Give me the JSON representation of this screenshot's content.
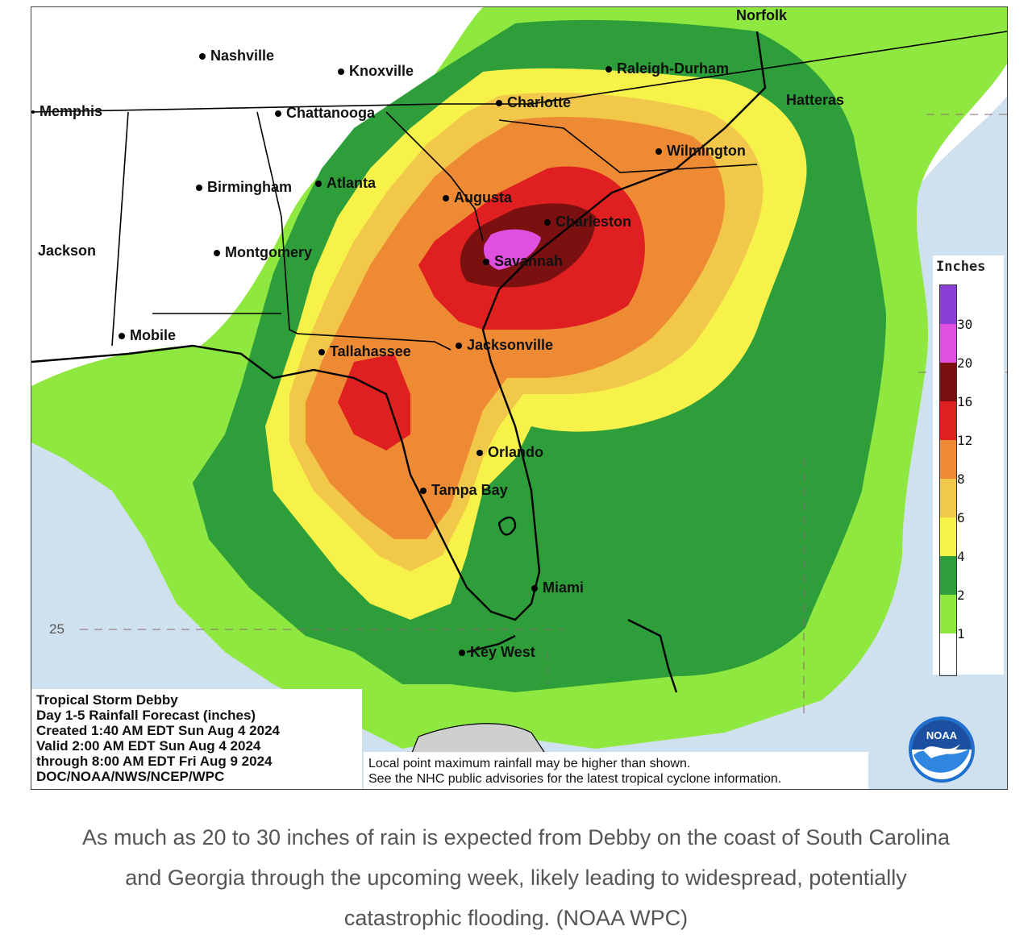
{
  "map": {
    "cities": [
      {
        "id": "norfolk",
        "label": "Norfolk"
      },
      {
        "id": "nashville",
        "label": "Nashville"
      },
      {
        "id": "knoxville",
        "label": "Knoxville"
      },
      {
        "id": "raleigh",
        "label": "Raleigh-Durham"
      },
      {
        "id": "memphis",
        "label": "Memphis"
      },
      {
        "id": "chattanooga",
        "label": "Chattanooga"
      },
      {
        "id": "charlotte",
        "label": "Charlotte"
      },
      {
        "id": "hatteras",
        "label": "Hatteras"
      },
      {
        "id": "wilmington",
        "label": "Wilmington"
      },
      {
        "id": "birmingham",
        "label": "Birmingham"
      },
      {
        "id": "atlanta",
        "label": "Atlanta"
      },
      {
        "id": "augusta",
        "label": "Augusta"
      },
      {
        "id": "charleston",
        "label": "Charleston"
      },
      {
        "id": "jackson",
        "label": "Jackson"
      },
      {
        "id": "montgomery",
        "label": "Montgomery"
      },
      {
        "id": "savannah",
        "label": "Savannah"
      },
      {
        "id": "mobile",
        "label": "Mobile"
      },
      {
        "id": "tallahassee",
        "label": "Tallahassee"
      },
      {
        "id": "jacksonville",
        "label": "Jacksonville"
      },
      {
        "id": "orlando",
        "label": "Orlando"
      },
      {
        "id": "tampa",
        "label": "Tampa Bay"
      },
      {
        "id": "miami",
        "label": "Miami"
      },
      {
        "id": "keywest",
        "label": "Key West"
      }
    ],
    "lat_label": "25",
    "legend": {
      "title": "Inches",
      "ticks": [
        "30",
        "20",
        "16",
        "12",
        "8",
        "6",
        "4",
        "2",
        "1"
      ],
      "colors": {
        "c30": "#8a3fd6",
        "c20": "#e04fe0",
        "c16": "#7a1010",
        "c12": "#e02020",
        "c8": "#ef8a34",
        "c6": "#f2c84a",
        "c4": "#f6f24a",
        "c2": "#2e9e3a",
        "c1": "#8fe840",
        "c0": "#ffffff"
      }
    },
    "info": {
      "line1": "Tropical Storm Debby",
      "line2": "Day 1-5 Rainfall Forecast (inches)",
      "line3": "Created 1:40 AM EDT Sun Aug 4 2024",
      "line4": "Valid 2:00 AM EDT Sun Aug 4 2024",
      "line5": "through 8:00 AM EDT Fri Aug 9 2024",
      "line6": "DOC/NOAA/NWS/NCEP/WPC"
    },
    "note": {
      "line1": "Local point maximum rainfall may be higher than shown.",
      "line2": "See the NHC public advisories for the latest tropical cyclone information."
    },
    "logo_text": "NOAA"
  },
  "caption": {
    "text": "As much as 20 to 30 inches of rain is expected from Debby on the coast of South Carolina and Georgia through the upcoming week, likely leading to widespread, potentially catastrophic flooding. (NOAA WPC)"
  }
}
